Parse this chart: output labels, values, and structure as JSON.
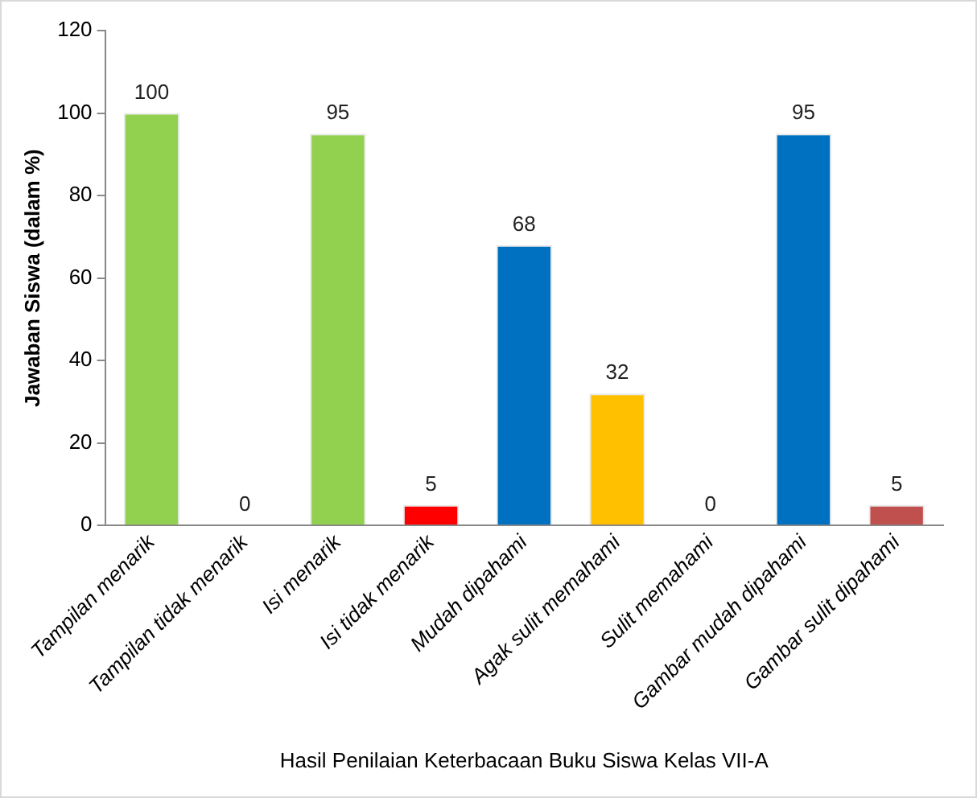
{
  "chart_data": {
    "type": "bar",
    "categories": [
      "Tampilan menarik",
      "Tampilan tidak menarik",
      "Isi menarik",
      "Isi tidak menarik",
      "Mudah dipahami",
      "Agak sulit memahami",
      "Sulit memahami",
      "Gambar mudah dipahami",
      "Gambar sulit dipahami"
    ],
    "values": [
      100,
      0,
      95,
      5,
      68,
      32,
      0,
      95,
      5
    ],
    "colors": [
      "#92d050",
      "#92d050",
      "#92d050",
      "#ff0000",
      "#0070c0",
      "#ffc000",
      "#0070c0",
      "#0070c0",
      "#c0504d"
    ],
    "xlabel": "Hasil Penilaian Keterbacaan Buku Siswa Kelas VII-A",
    "ylabel": "Jawaban Siswa (dalam %)",
    "ylim": [
      0,
      120
    ],
    "yticks": [
      0,
      20,
      40,
      60,
      80,
      100,
      120
    ],
    "grid": false,
    "legend": false,
    "data_labels": true
  }
}
